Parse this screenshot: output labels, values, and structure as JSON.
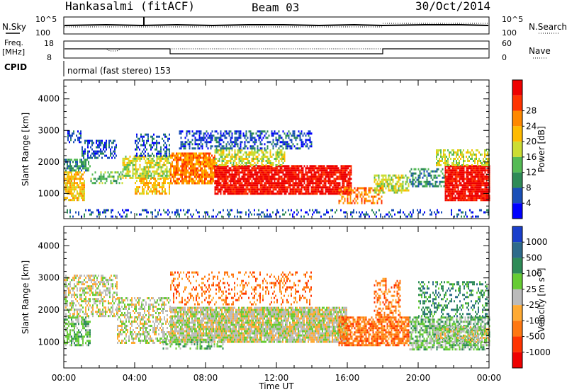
{
  "header": {
    "station": "Hankasalmi (fitACF)",
    "beam": "Beam 03",
    "date": "30/Oct/2014"
  },
  "status_panels": {
    "nsky_label": "N.Sky",
    "nsearch_label": "N.Search",
    "freq_label_1": "Freq.",
    "freq_label_2": "[MHz]",
    "nave_label": "Nave",
    "cpid_label": "CPID",
    "cpid_text": "normal (fast stereo) 153",
    "noise_ticks_left": [
      {
        "base": "10",
        "exp": "^5"
      },
      {
        "base": "10",
        "exp": "0"
      }
    ],
    "noise_ticks_right": [
      {
        "base": "10",
        "exp": "^5"
      },
      {
        "base": "10",
        "exp": "0"
      }
    ],
    "freq_ticks": [
      "18",
      "8"
    ],
    "nave_ticks": [
      "60",
      "0"
    ]
  },
  "chart_data": [
    {
      "type": "heatmap",
      "parameter": "Power",
      "ylabel": "Slant Range [km]",
      "xlabel": "",
      "x_ticks": [
        "00:00",
        "04:00",
        "08:00",
        "12:00",
        "16:00",
        "20:00",
        "00:00"
      ],
      "y_ticks": [
        "1000",
        "2000",
        "3000",
        "4000"
      ],
      "ylim": [
        200,
        4600
      ],
      "xlim_hours": [
        0,
        24
      ],
      "colorbar": {
        "label": "Power [dB]",
        "ticks": [
          "4",
          "8",
          "12",
          "16",
          "20",
          "24",
          "28"
        ],
        "colors": [
          "#0000ff",
          "#1a4fb8",
          "#2e8b57",
          "#55bb55",
          "#ccdd33",
          "#ffbb00",
          "#ff8800",
          "#ff3300",
          "#ee0000"
        ]
      },
      "regions": [
        {
          "t0": 0.0,
          "t1": 1.2,
          "r0": 800,
          "r1": 1700,
          "level": 5,
          "density": 0.75
        },
        {
          "t0": 0.0,
          "t1": 1.5,
          "r0": 1700,
          "r1": 2100,
          "level": 2,
          "density": 0.6
        },
        {
          "t0": 0.2,
          "t1": 1.0,
          "r0": 2600,
          "r1": 3000,
          "level": 1,
          "density": 0.6
        },
        {
          "t0": 1.0,
          "t1": 3.0,
          "r0": 2100,
          "r1": 2700,
          "level": 1,
          "density": 0.5
        },
        {
          "t0": 1.5,
          "t1": 3.3,
          "r0": 1300,
          "r1": 1700,
          "level": 3,
          "density": 0.45
        },
        {
          "t0": 3.3,
          "t1": 6.0,
          "r0": 1500,
          "r1": 2200,
          "level": 4,
          "density": 0.7
        },
        {
          "t0": 4.0,
          "t1": 6.0,
          "r0": 1000,
          "r1": 1500,
          "level": 5,
          "density": 0.6
        },
        {
          "t0": 4.0,
          "t1": 6.0,
          "r0": 2200,
          "r1": 2900,
          "level": 1,
          "density": 0.45
        },
        {
          "t0": 6.0,
          "t1": 8.5,
          "r0": 1300,
          "r1": 2300,
          "level": 6,
          "density": 0.85
        },
        {
          "t0": 8.5,
          "t1": 12.5,
          "r0": 1000,
          "r1": 1900,
          "level": 8,
          "density": 0.9
        },
        {
          "t0": 8.5,
          "t1": 12.5,
          "r0": 1900,
          "r1": 2400,
          "level": 4,
          "density": 0.6
        },
        {
          "t0": 12.5,
          "t1": 16.2,
          "r0": 1000,
          "r1": 1900,
          "level": 8,
          "density": 0.85
        },
        {
          "t0": 6.5,
          "t1": 14.0,
          "r0": 2400,
          "r1": 3000,
          "level": 1,
          "density": 0.5
        },
        {
          "t0": 15.5,
          "t1": 18.0,
          "r0": 700,
          "r1": 1200,
          "level": 6,
          "density": 0.5
        },
        {
          "t0": 17.5,
          "t1": 19.5,
          "r0": 1000,
          "r1": 1600,
          "level": 4,
          "density": 0.6
        },
        {
          "t0": 19.5,
          "t1": 21.5,
          "r0": 1200,
          "r1": 1800,
          "level": 2,
          "density": 0.5
        },
        {
          "t0": 21.5,
          "t1": 24.0,
          "r0": 800,
          "r1": 1900,
          "level": 8,
          "density": 0.9
        },
        {
          "t0": 21.0,
          "t1": 24.0,
          "r0": 1900,
          "r1": 2400,
          "level": 4,
          "density": 0.55
        },
        {
          "t0": 0.0,
          "t1": 24.0,
          "r0": 250,
          "r1": 500,
          "level": 1,
          "density": 0.25
        }
      ]
    },
    {
      "type": "heatmap",
      "parameter": "Velocity",
      "ylabel": "Slant Range [km]",
      "xlabel": "Time UT",
      "x_ticks": [
        "00:00",
        "04:00",
        "08:00",
        "12:00",
        "16:00",
        "20:00",
        "00:00"
      ],
      "y_ticks": [
        "1000",
        "2000",
        "3000",
        "4000"
      ],
      "ylim": [
        200,
        4600
      ],
      "xlim_hours": [
        0,
        24
      ],
      "colorbar": {
        "label": "Velocity [m s",
        "label_exp": "-1",
        "label_end": "]",
        "ticks": [
          "1000",
          "500",
          "100",
          "25",
          "-25",
          "-100",
          "-500",
          "-1000"
        ],
        "colors": [
          "#1a3fcc",
          "#2e6b8b",
          "#2e8b57",
          "#66cc33",
          "#bbbbbb",
          "#ffaa33",
          "#ff7711",
          "#ff3300",
          "#ee0000"
        ]
      },
      "regions": [
        {
          "t0": 0.0,
          "t1": 1.5,
          "r0": 900,
          "r1": 1800,
          "level": 3,
          "density": 0.6
        },
        {
          "t0": 0.0,
          "t1": 3.0,
          "r0": 1800,
          "r1": 3100,
          "level": 4,
          "density": 0.55
        },
        {
          "t0": 3.0,
          "t1": 6.0,
          "r0": 1000,
          "r1": 2400,
          "level": 4,
          "density": 0.5
        },
        {
          "t0": 6.0,
          "t1": 16.0,
          "r0": 1000,
          "r1": 2100,
          "level": 4,
          "density": 0.9
        },
        {
          "t0": 6.0,
          "t1": 14.0,
          "r0": 2200,
          "r1": 3200,
          "level": 6,
          "density": 0.25
        },
        {
          "t0": 5.5,
          "t1": 9.0,
          "r0": 800,
          "r1": 1100,
          "level": 3,
          "density": 0.4
        },
        {
          "t0": 15.5,
          "t1": 19.5,
          "r0": 900,
          "r1": 1800,
          "level": 6,
          "density": 0.75
        },
        {
          "t0": 17.5,
          "t1": 19.0,
          "r0": 1800,
          "r1": 3000,
          "level": 6,
          "density": 0.4
        },
        {
          "t0": 19.5,
          "t1": 24.0,
          "r0": 800,
          "r1": 1800,
          "level": 3,
          "density": 0.7
        },
        {
          "t0": 20.0,
          "t1": 24.0,
          "r0": 1800,
          "r1": 2900,
          "level": 2,
          "density": 0.35
        },
        {
          "t0": 21.0,
          "t1": 24.0,
          "r0": 1000,
          "r1": 1500,
          "level": 4,
          "density": 0.5
        }
      ]
    }
  ]
}
